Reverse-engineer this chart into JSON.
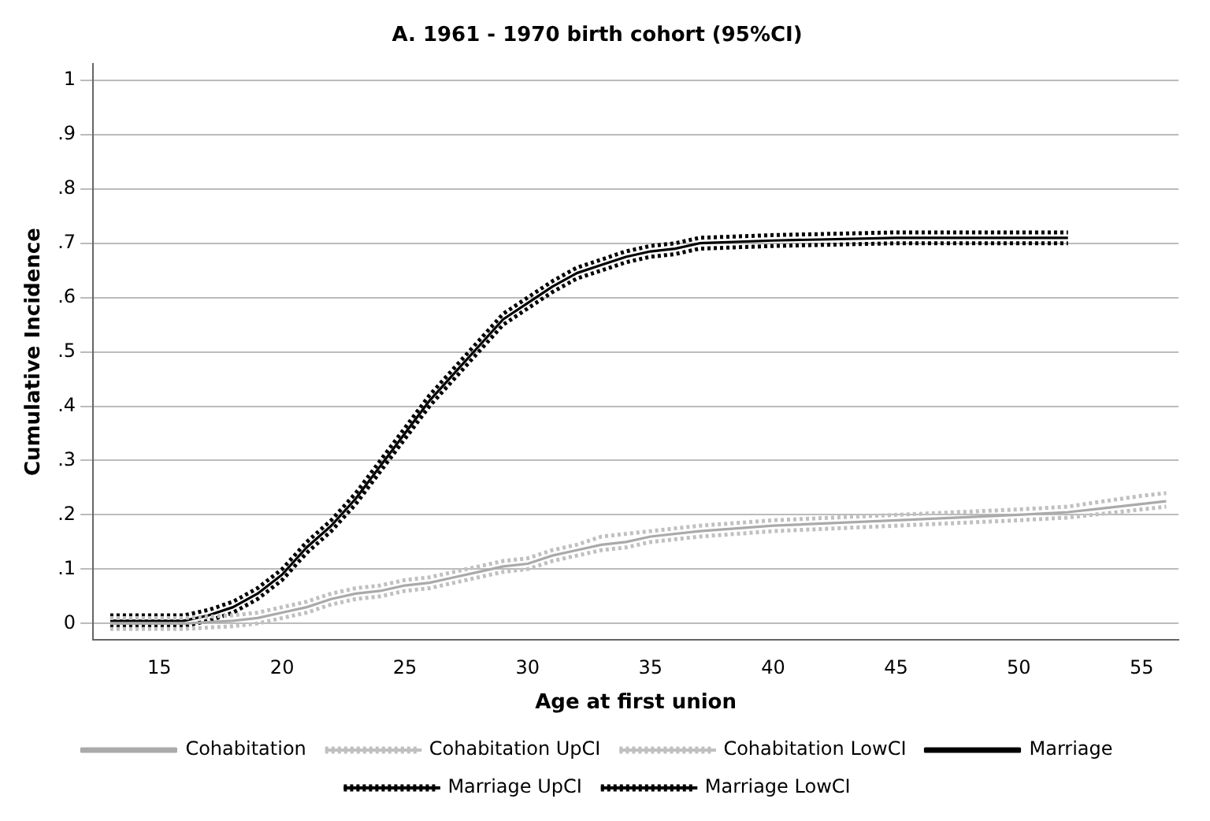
{
  "chart_data": {
    "type": "line",
    "title": "A. 1961 - 1970 birth cohort (95%CI)",
    "xlabel": "Age at first union",
    "ylabel": "Cumulative Incidence",
    "xlim": [
      12.3,
      56.5
    ],
    "xticks": [
      15,
      20,
      25,
      30,
      35,
      40,
      45,
      50,
      55
    ],
    "ylim": [
      -0.03,
      1.03
    ],
    "yticks": [
      0,
      {
        "value": 0.1,
        "label": ".1"
      },
      {
        "value": 0.2,
        "label": ".2"
      },
      {
        "value": 0.3,
        "label": ".3"
      },
      {
        "value": 0.4,
        "label": ".4"
      },
      {
        "value": 0.5,
        "label": ".5"
      },
      {
        "value": 0.6,
        "label": ".6"
      },
      {
        "value": 0.7,
        "label": ".7"
      },
      {
        "value": 0.8,
        "label": ".8"
      },
      {
        "value": 0.9,
        "label": ".9"
      },
      1
    ],
    "grid": "y",
    "legend": "bottom",
    "marker": "none",
    "series": [
      {
        "name": "Cohabitation",
        "color": "#aaaaaa",
        "line_style": "solid",
        "x": [
          13,
          16,
          18,
          19,
          20,
          21,
          22,
          23,
          24,
          25,
          26,
          27,
          28,
          29,
          30,
          31,
          32,
          33,
          34,
          35,
          37,
          40,
          45,
          50,
          52,
          53,
          55,
          56
        ],
        "values": [
          0,
          0,
          0.005,
          0.01,
          0.02,
          0.03,
          0.045,
          0.055,
          0.06,
          0.07,
          0.075,
          0.085,
          0.095,
          0.105,
          0.11,
          0.125,
          0.135,
          0.145,
          0.15,
          0.16,
          0.17,
          0.18,
          0.19,
          0.2,
          0.205,
          0.21,
          0.22,
          0.225
        ]
      },
      {
        "name": "Cohabitation UpCI",
        "color": "#c0c0c0",
        "line_style": "dotted",
        "x": [
          13,
          16,
          18,
          19,
          20,
          21,
          22,
          23,
          24,
          25,
          26,
          27,
          28,
          29,
          30,
          31,
          32,
          33,
          34,
          35,
          37,
          40,
          45,
          50,
          52,
          53,
          55,
          56
        ],
        "values": [
          0.01,
          0.01,
          0.015,
          0.02,
          0.03,
          0.04,
          0.055,
          0.065,
          0.07,
          0.08,
          0.085,
          0.095,
          0.105,
          0.115,
          0.12,
          0.135,
          0.145,
          0.16,
          0.165,
          0.17,
          0.18,
          0.19,
          0.2,
          0.21,
          0.215,
          0.222,
          0.235,
          0.24
        ]
      },
      {
        "name": "Cohabitation LowCI",
        "color": "#c0c0c0",
        "line_style": "dotted",
        "x": [
          13,
          16,
          18,
          19,
          20,
          21,
          22,
          23,
          24,
          25,
          26,
          27,
          28,
          29,
          30,
          31,
          32,
          33,
          34,
          35,
          37,
          40,
          45,
          50,
          52,
          53,
          55,
          56
        ],
        "values": [
          -0.01,
          -0.01,
          -0.005,
          0,
          0.01,
          0.02,
          0.035,
          0.045,
          0.05,
          0.06,
          0.065,
          0.075,
          0.085,
          0.095,
          0.1,
          0.115,
          0.125,
          0.135,
          0.14,
          0.15,
          0.16,
          0.17,
          0.18,
          0.19,
          0.195,
          0.2,
          0.21,
          0.215
        ]
      },
      {
        "name": "Marriage",
        "color": "#000000",
        "line_style": "solid",
        "x": [
          13,
          16,
          17,
          18,
          19,
          20,
          21,
          22,
          23,
          24,
          25,
          26,
          27,
          28,
          29,
          30,
          31,
          32,
          33,
          34,
          35,
          36,
          37,
          40,
          45,
          52
        ],
        "values": [
          0.005,
          0.005,
          0.015,
          0.03,
          0.055,
          0.09,
          0.14,
          0.18,
          0.23,
          0.29,
          0.35,
          0.41,
          0.46,
          0.51,
          0.56,
          0.59,
          0.62,
          0.645,
          0.66,
          0.675,
          0.685,
          0.69,
          0.7,
          0.705,
          0.71,
          0.71
        ]
      },
      {
        "name": "Marriage UpCI",
        "color": "#000000",
        "line_style": "dotted",
        "x": [
          13,
          16,
          17,
          18,
          19,
          20,
          21,
          22,
          23,
          24,
          25,
          26,
          27,
          28,
          29,
          30,
          31,
          32,
          33,
          34,
          35,
          36,
          37,
          40,
          45,
          52
        ],
        "values": [
          0.015,
          0.015,
          0.025,
          0.04,
          0.065,
          0.1,
          0.15,
          0.19,
          0.24,
          0.3,
          0.36,
          0.42,
          0.47,
          0.52,
          0.57,
          0.6,
          0.63,
          0.655,
          0.67,
          0.685,
          0.695,
          0.7,
          0.71,
          0.715,
          0.72,
          0.72
        ]
      },
      {
        "name": "Marriage LowCI",
        "color": "#000000",
        "line_style": "dotted",
        "x": [
          13,
          16,
          17,
          18,
          19,
          20,
          21,
          22,
          23,
          24,
          25,
          26,
          27,
          28,
          29,
          30,
          31,
          32,
          33,
          34,
          35,
          36,
          37,
          40,
          45,
          52
        ],
        "values": [
          -0.005,
          -0.005,
          0.005,
          0.02,
          0.045,
          0.08,
          0.13,
          0.17,
          0.22,
          0.28,
          0.34,
          0.4,
          0.45,
          0.5,
          0.55,
          0.58,
          0.61,
          0.635,
          0.65,
          0.665,
          0.675,
          0.68,
          0.69,
          0.695,
          0.7,
          0.7
        ]
      }
    ]
  }
}
